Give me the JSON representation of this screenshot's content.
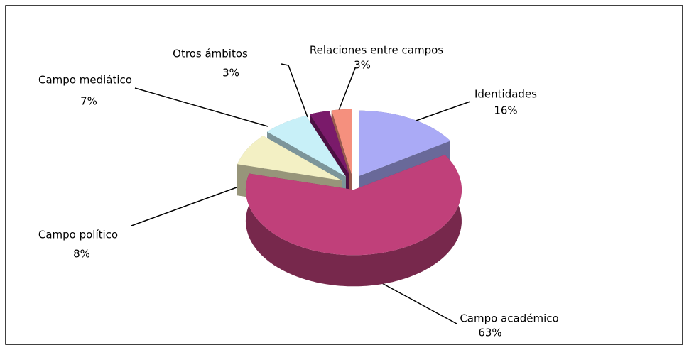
{
  "chart_data": {
    "type": "pie",
    "categories": [
      "Identidades",
      "Campo académico",
      "Campo político",
      "Campo mediático",
      "Otros ámbitos",
      "Relaciones entre campos"
    ],
    "values": [
      16,
      63,
      8,
      7,
      3,
      3
    ],
    "value_labels": [
      "16%",
      "63%",
      "8%",
      "7%",
      "3%",
      "3%"
    ],
    "colors": [
      "#aaaaf6",
      "#c0407a",
      "#f3f0c4",
      "#c8f0f8",
      "#7a1a6a",
      "#f5907e"
    ]
  }
}
